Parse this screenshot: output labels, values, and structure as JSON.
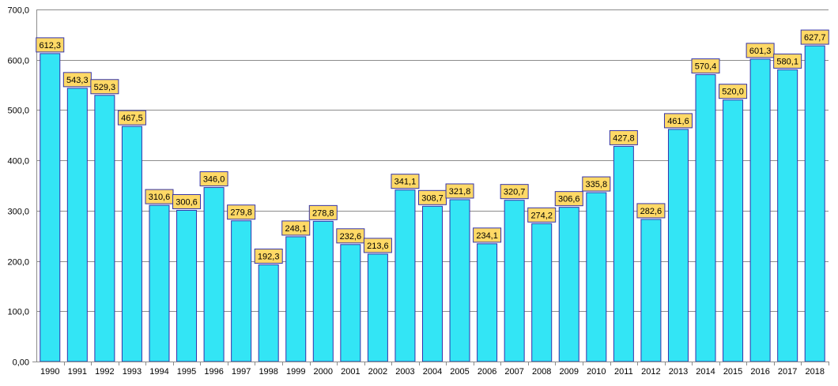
{
  "chart_data": {
    "type": "bar",
    "title": "",
    "xlabel": "",
    "ylabel": "",
    "categories": [
      "1990",
      "1991",
      "1992",
      "1993",
      "1994",
      "1995",
      "1996",
      "1997",
      "1998",
      "1999",
      "2000",
      "2001",
      "2002",
      "2003",
      "2004",
      "2005",
      "2006",
      "2007",
      "2008",
      "2009",
      "2010",
      "2011",
      "2012",
      "2013",
      "2014",
      "2015",
      "2016",
      "2017",
      "2018"
    ],
    "values": [
      612.3,
      543.3,
      529.3,
      467.5,
      310.6,
      300.6,
      346.0,
      279.8,
      192.3,
      248.1,
      278.8,
      232.6,
      213.6,
      341.1,
      308.7,
      321.8,
      234.1,
      320.7,
      274.2,
      306.6,
      335.8,
      427.8,
      282.6,
      461.6,
      570.4,
      520.0,
      601.3,
      580.1,
      627.7
    ],
    "data_labels": [
      "612,3",
      "543,3",
      "529,3",
      "467,5",
      "310,6",
      "300,6",
      "346,0",
      "279,8",
      "192,3",
      "248,1",
      "278,8",
      "232,6",
      "213,6",
      "341,1",
      "308,7",
      "321,8",
      "234,1",
      "320,7",
      "274,2",
      "306,6",
      "335,8",
      "427,8",
      "282,6",
      "461,6",
      "570,4",
      "520,0",
      "601,3",
      "580,1",
      "627,7"
    ],
    "ylim": [
      0,
      700
    ],
    "y_ticks": [
      0,
      100,
      200,
      300,
      400,
      500,
      600,
      700
    ],
    "y_tick_labels": [
      "0,00",
      "100,0",
      "200,0",
      "300,0",
      "400,0",
      "500,0",
      "600,0",
      "700,0"
    ],
    "grid": true,
    "legend": "none",
    "colors": {
      "bar_fill": "#33e5f5",
      "bar_stroke": "#3333aa",
      "label_fill": "#ffd966",
      "label_stroke": "#3333aa",
      "grid": "#8c8c8c",
      "axis": "#8c8c8c"
    }
  }
}
